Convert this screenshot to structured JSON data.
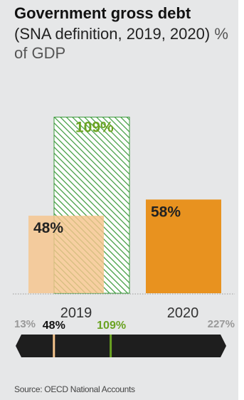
{
  "title": "Government gross debt",
  "subtitle": "(SNA definition, 2019, 2020)",
  "unit": "% of GDP",
  "source": "Source: OECD National Accounts",
  "colors": {
    "bar_2019": "#f5c48c",
    "bar_2020": "#e8921f",
    "hatch": "#3a9a3a",
    "avg_text": "#6aa322",
    "range_bar": "#1e1e1e",
    "panel": "#e6e7e8"
  },
  "chart_data": {
    "type": "bar",
    "categories": [
      "2019",
      "2020"
    ],
    "series": [
      {
        "values": [
          48,
          58
        ],
        "labels": [
          "48%",
          "58%"
        ]
      }
    ],
    "highlight": {
      "category": "2019",
      "value": 109,
      "label": "109%",
      "style": "hatched-green"
    },
    "ylim": [
      0,
      150
    ],
    "range_indicator": {
      "min": 13,
      "max": 227,
      "min_label": "13%",
      "max_label": "227%",
      "markers": [
        {
          "value": 48,
          "label": "48%",
          "color": "#f5c48c"
        },
        {
          "value": 109,
          "label": "109%",
          "color": "#6aa322"
        }
      ]
    }
  }
}
